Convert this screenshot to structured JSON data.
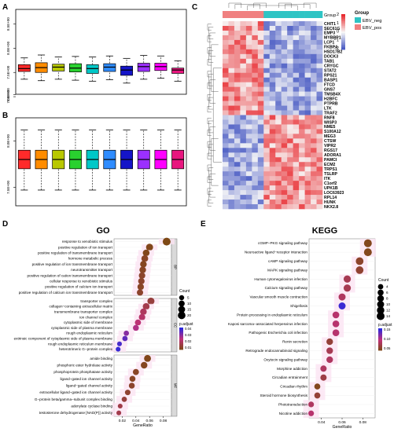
{
  "chart_data": [
    {
      "panel": "A",
      "type": "boxplot",
      "y_ticks": [
        "7.0E+00",
        "7.5E+00",
        "8.0E+00",
        "8.5E+00"
      ],
      "colors": [
        "#ff2a2a",
        "#ff8c00",
        "#b8c800",
        "#29d12f",
        "#00c8c8",
        "#2f8cff",
        "#1515c8",
        "#9b30ff",
        "#ff00ff",
        "#e8157e"
      ],
      "boxes": [
        {
          "q1": 7.52,
          "med": 7.58,
          "q3": 7.66,
          "lo": 7.36,
          "hi": 7.8
        },
        {
          "q1": 7.5,
          "med": 7.6,
          "q3": 7.7,
          "lo": 7.33,
          "hi": 7.86
        },
        {
          "q1": 7.53,
          "med": 7.61,
          "q3": 7.67,
          "lo": 7.36,
          "hi": 7.82
        },
        {
          "q1": 7.51,
          "med": 7.59,
          "q3": 7.68,
          "lo": 7.34,
          "hi": 7.83
        },
        {
          "q1": 7.48,
          "med": 7.58,
          "q3": 7.66,
          "lo": 7.32,
          "hi": 7.82
        },
        {
          "q1": 7.52,
          "med": 7.61,
          "q3": 7.68,
          "lo": 7.35,
          "hi": 7.84
        },
        {
          "q1": 7.44,
          "med": 7.55,
          "q3": 7.63,
          "lo": 7.28,
          "hi": 7.79
        },
        {
          "q1": 7.52,
          "med": 7.62,
          "q3": 7.69,
          "lo": 7.36,
          "hi": 7.85
        },
        {
          "q1": 7.54,
          "med": 7.62,
          "q3": 7.69,
          "lo": 7.38,
          "hi": 7.84
        },
        {
          "q1": 7.48,
          "med": 7.55,
          "q3": 7.59,
          "lo": 7.32,
          "hi": 7.74
        }
      ]
    },
    {
      "panel": "B",
      "type": "boxplot",
      "y_ticks": [
        "7.5E+00",
        "8.0E+00",
        "8.5E+00"
      ],
      "colors": [
        "#ff2a2a",
        "#ff8c00",
        "#b8c800",
        "#29d12f",
        "#00c8c8",
        "#2f8cff",
        "#1515c8",
        "#9b30ff",
        "#ff00ff",
        "#e8157e"
      ],
      "boxes": [
        {
          "q1": 7.7,
          "med": 7.8,
          "q3": 7.9,
          "lo": 7.47,
          "hi": 8.12
        },
        {
          "q1": 7.7,
          "med": 7.8,
          "q3": 7.9,
          "lo": 7.47,
          "hi": 8.12
        },
        {
          "q1": 7.7,
          "med": 7.8,
          "q3": 7.9,
          "lo": 7.47,
          "hi": 8.12
        },
        {
          "q1": 7.7,
          "med": 7.8,
          "q3": 7.9,
          "lo": 7.47,
          "hi": 8.12
        },
        {
          "q1": 7.7,
          "med": 7.8,
          "q3": 7.9,
          "lo": 7.47,
          "hi": 8.12
        },
        {
          "q1": 7.7,
          "med": 7.8,
          "q3": 7.9,
          "lo": 7.47,
          "hi": 8.12
        },
        {
          "q1": 7.7,
          "med": 7.8,
          "q3": 7.9,
          "lo": 7.47,
          "hi": 8.12
        },
        {
          "q1": 7.7,
          "med": 7.8,
          "q3": 7.9,
          "lo": 7.47,
          "hi": 8.12
        },
        {
          "q1": 7.7,
          "med": 7.8,
          "q3": 7.9,
          "lo": 7.47,
          "hi": 8.12
        },
        {
          "q1": 7.7,
          "med": 7.8,
          "q3": 7.9,
          "lo": 7.47,
          "hi": 8.12
        }
      ]
    },
    {
      "panel": "C",
      "type": "heatmap",
      "group_label": "Group",
      "legend_title": "Group",
      "legend_entries": [
        {
          "name": "EBV_neg",
          "color": "#2ec4c4"
        },
        {
          "name": "EBV_pos",
          "color": "#f08080"
        }
      ],
      "n_samples": 17,
      "n_pos": 7,
      "scale_ticks": [
        "2",
        "1",
        "0",
        "−1",
        "−2"
      ],
      "genes": [
        "CHIT1",
        "SEC61G",
        "EMP3",
        "MYBBP1A",
        "LCP1",
        "FKBP4",
        "HSD17B2",
        "DOCK3",
        "TAB1",
        "CRYGC",
        "STAT2",
        "RPS21",
        "BASP1",
        "FTCD",
        "GNS7",
        "TMSB4X",
        "H2BFC",
        "PTPRB",
        "LTK",
        "TRAF2",
        "RNF8",
        "WISP3",
        "NME5",
        "S100A12",
        "MEG3",
        "CTSW",
        "VIPR2",
        "RGS17",
        "ADORA1",
        "PAMCI",
        "ECM2",
        "TRPS1",
        "TSLRP",
        "ITK",
        "C1orf2",
        "UPK1B",
        "LOC63923",
        "RPL14",
        "HUNK",
        "NKX2.8"
      ],
      "n_up": 20
    },
    {
      "panel": "D",
      "type": "dotplot",
      "title": "GO",
      "xlabel": "GeneRatio",
      "x_ticks": [
        0.02,
        0.04,
        0.06,
        0.08
      ],
      "xlim": [
        0.008,
        0.092
      ],
      "size_legend_title": "Count",
      "size_legend": [
        5,
        10,
        15,
        20
      ],
      "color_legend_title": "p.adjust",
      "color_ticks": [
        "0.04",
        "0.03",
        "0.02",
        "0.01"
      ],
      "facets": [
        {
          "name": "BP",
          "terms": [
            {
              "label": "response to xenobiotic stimulus",
              "ratio": 0.085,
              "count": 22,
              "p": 0.005
            },
            {
              "label": "positive regulation of ion transport",
              "ratio": 0.06,
              "count": 16,
              "p": 0.006
            },
            {
              "label": "positive regulation of transmembrane transport",
              "ratio": 0.055,
              "count": 14,
              "p": 0.006
            },
            {
              "label": "hormone metabolic process",
              "ratio": 0.053,
              "count": 14,
              "p": 0.008
            },
            {
              "label": "positive regulation of ion transmembrane transport",
              "ratio": 0.051,
              "count": 13,
              "p": 0.007
            },
            {
              "label": "neurotransmitter transport",
              "ratio": 0.05,
              "count": 13,
              "p": 0.008
            },
            {
              "label": "positive regulation of cation transmembrane transport",
              "ratio": 0.049,
              "count": 12,
              "p": 0.009
            },
            {
              "label": "cellular response to xenobiotic stimulus",
              "ratio": 0.048,
              "count": 12,
              "p": 0.009
            },
            {
              "label": "positive regulation of calcium ion transport",
              "ratio": 0.047,
              "count": 12,
              "p": 0.008
            },
            {
              "label": "positive regulation of calcium ion transmembrane transport",
              "ratio": 0.046,
              "count": 11,
              "p": 0.009
            }
          ]
        },
        {
          "name": "CC",
          "terms": [
            {
              "label": "transporter complex",
              "ratio": 0.062,
              "count": 16,
              "p": 0.012
            },
            {
              "label": "collagen−containing extracellular matrix",
              "ratio": 0.055,
              "count": 14,
              "p": 0.015
            },
            {
              "label": "transmembrane transporter complex",
              "ratio": 0.051,
              "count": 13,
              "p": 0.018
            },
            {
              "label": "ion channel complex",
              "ratio": 0.049,
              "count": 12,
              "p": 0.02
            },
            {
              "label": "cytoplasmic side of membrane",
              "ratio": 0.043,
              "count": 10,
              "p": 0.022
            },
            {
              "label": "cytoplasmic side of plasma membrane",
              "ratio": 0.04,
              "count": 9,
              "p": 0.025
            },
            {
              "label": "rough endoplasmic reticulum",
              "ratio": 0.026,
              "count": 6,
              "p": 0.03
            },
            {
              "label": "extrinsic component of cytoplasmic side of plasma membrane",
              "ratio": 0.024,
              "count": 6,
              "p": 0.035
            },
            {
              "label": "rough endoplasmic reticulum membrane",
              "ratio": 0.016,
              "count": 4,
              "p": 0.038
            },
            {
              "label": "heterotrimeric G−protein complex",
              "ratio": 0.014,
              "count": 4,
              "p": 0.04
            }
          ]
        },
        {
          "name": "MF",
          "terms": [
            {
              "label": "amide binding",
              "ratio": 0.057,
              "count": 15,
              "p": 0.006
            },
            {
              "label": "phosphoric ester hydrolase activity",
              "ratio": 0.052,
              "count": 13,
              "p": 0.007
            },
            {
              "label": "phosphoprotein phosphatase activity",
              "ratio": 0.04,
              "count": 10,
              "p": 0.008
            },
            {
              "label": "ligand−gated ion channel activity",
              "ratio": 0.035,
              "count": 9,
              "p": 0.008
            },
            {
              "label": "ligand−gated channel activity",
              "ratio": 0.034,
              "count": 9,
              "p": 0.009
            },
            {
              "label": "extracellular ligand−gated ion channel activity",
              "ratio": 0.028,
              "count": 7,
              "p": 0.01
            },
            {
              "label": "G−protein beta/gamma−subunit complex binding",
              "ratio": 0.023,
              "count": 6,
              "p": 0.012
            },
            {
              "label": "adenylate cyclase binding",
              "ratio": 0.017,
              "count": 4,
              "p": 0.014
            },
            {
              "label": "testosterone dehydrogenase [NAD(P)] activity",
              "ratio": 0.015,
              "count": 4,
              "p": 0.015
            }
          ]
        }
      ]
    },
    {
      "panel": "E",
      "type": "dotplot",
      "title": "KEGG",
      "xlabel": "GeneRatio",
      "x_ticks": [
        0.04,
        0.06,
        0.08
      ],
      "xlim": [
        0.028,
        0.092
      ],
      "size_legend_title": "Count",
      "size_legend": [
        4,
        6,
        8,
        10,
        12,
        14
      ],
      "color_legend_title": "p.adjust",
      "color_ticks": [
        "0.15",
        "0.10",
        "0.05"
      ],
      "terms": [
        {
          "label": "cGMP−PKG signaling pathway",
          "ratio": 0.085,
          "count": 14,
          "p": 0.03
        },
        {
          "label": "Neuroactive ligand−receptor interaction",
          "ratio": 0.085,
          "count": 14,
          "p": 0.03
        },
        {
          "label": "cAMP signaling pathway",
          "ratio": 0.077,
          "count": 13,
          "p": 0.04
        },
        {
          "label": "MAPK signaling pathway",
          "ratio": 0.077,
          "count": 13,
          "p": 0.045
        },
        {
          "label": "Human cytomegalovirus infection",
          "ratio": 0.065,
          "count": 11,
          "p": 0.07
        },
        {
          "label": "Calcium signaling pathway",
          "ratio": 0.065,
          "count": 11,
          "p": 0.07
        },
        {
          "label": "Vascular smooth muscle contraction",
          "ratio": 0.06,
          "count": 10,
          "p": 0.08
        },
        {
          "label": "Shigellosis",
          "ratio": 0.06,
          "count": 10,
          "p": 0.17
        },
        {
          "label": "Protein processing in endoplasmic reticulum",
          "ratio": 0.054,
          "count": 9,
          "p": 0.09
        },
        {
          "label": "Kaposi sarcoma−associated herpesvirus infection",
          "ratio": 0.054,
          "count": 9,
          "p": 0.09
        },
        {
          "label": "Pathogenic Escherichia coli infection",
          "ratio": 0.054,
          "count": 9,
          "p": 0.09
        },
        {
          "label": "Renin secretion",
          "ratio": 0.048,
          "count": 8,
          "p": 0.05
        },
        {
          "label": "Retrograde endocannabinoid signaling",
          "ratio": 0.048,
          "count": 8,
          "p": 0.07
        },
        {
          "label": "Oxytocin signaling pathway",
          "ratio": 0.048,
          "count": 8,
          "p": 0.08
        },
        {
          "label": "Morphine addiction",
          "ratio": 0.042,
          "count": 7,
          "p": 0.08
        },
        {
          "label": "Circadian entrainment",
          "ratio": 0.042,
          "count": 7,
          "p": 0.06
        },
        {
          "label": "Circadian rhythm",
          "ratio": 0.036,
          "count": 6,
          "p": 0.03
        },
        {
          "label": "Steroid hormone biosynthesis",
          "ratio": 0.036,
          "count": 6,
          "p": 0.05
        },
        {
          "label": "Phototransduction",
          "ratio": 0.03,
          "count": 5,
          "p": 0.08
        },
        {
          "label": "Nicotine addiction",
          "ratio": 0.03,
          "count": 5,
          "p": 0.09
        }
      ]
    }
  ],
  "panel_letters": [
    "A",
    "B",
    "C",
    "D",
    "E"
  ]
}
